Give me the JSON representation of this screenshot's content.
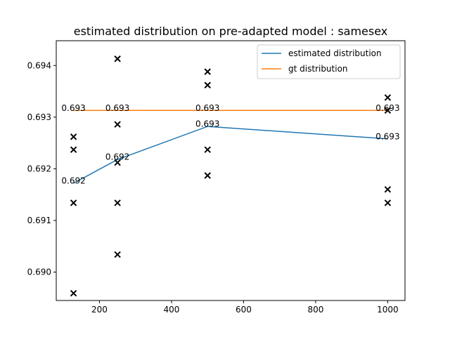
{
  "chart_data": {
    "type": "line",
    "title": "estimated distribution on pre-adapted model : samesex",
    "xlabel": "",
    "ylabel": "",
    "xlim": [
      80,
      1048
    ],
    "ylim": [
      0.68945,
      0.69448
    ],
    "xticks": [
      200,
      400,
      600,
      800,
      1000
    ],
    "xtick_labels": [
      "200",
      "400",
      "600",
      "800",
      "1000"
    ],
    "yticks": [
      0.69,
      0.691,
      0.692,
      0.693,
      0.694
    ],
    "ytick_labels": [
      "0.690",
      "0.691",
      "0.692",
      "0.693",
      "0.694"
    ],
    "grid": false,
    "legend_position": "upper right",
    "series": [
      {
        "name": "estimated distribution",
        "color": "#1f77b4",
        "x": [
          128,
          250,
          500,
          1000
        ],
        "y": [
          0.69172,
          0.69218,
          0.69282,
          0.69258
        ],
        "labels": [
          "0.692",
          "0.692",
          "0.693",
          "0.693"
        ]
      },
      {
        "name": "gt distribution",
        "color": "#ff7f0e",
        "x": [
          128,
          250,
          500,
          1000
        ],
        "y": [
          0.69313,
          0.69313,
          0.69313,
          0.69313
        ],
        "labels": [
          "0.693",
          "0.693",
          "0.693",
          "0.693"
        ]
      }
    ],
    "scatter": {
      "marker": "x",
      "color": "#000000",
      "points": [
        [
          128,
          0.69262
        ],
        [
          128,
          0.69237
        ],
        [
          128,
          0.69134
        ],
        [
          128,
          0.68959
        ],
        [
          250,
          0.69413
        ],
        [
          250,
          0.69286
        ],
        [
          250,
          0.69212
        ],
        [
          250,
          0.69134
        ],
        [
          250,
          0.69034
        ],
        [
          500,
          0.69388
        ],
        [
          500,
          0.69362
        ],
        [
          500,
          0.69237
        ],
        [
          500,
          0.69187
        ],
        [
          1000,
          0.69338
        ],
        [
          1000,
          0.69313
        ],
        [
          1000,
          0.6916
        ],
        [
          1000,
          0.69134
        ]
      ]
    }
  }
}
